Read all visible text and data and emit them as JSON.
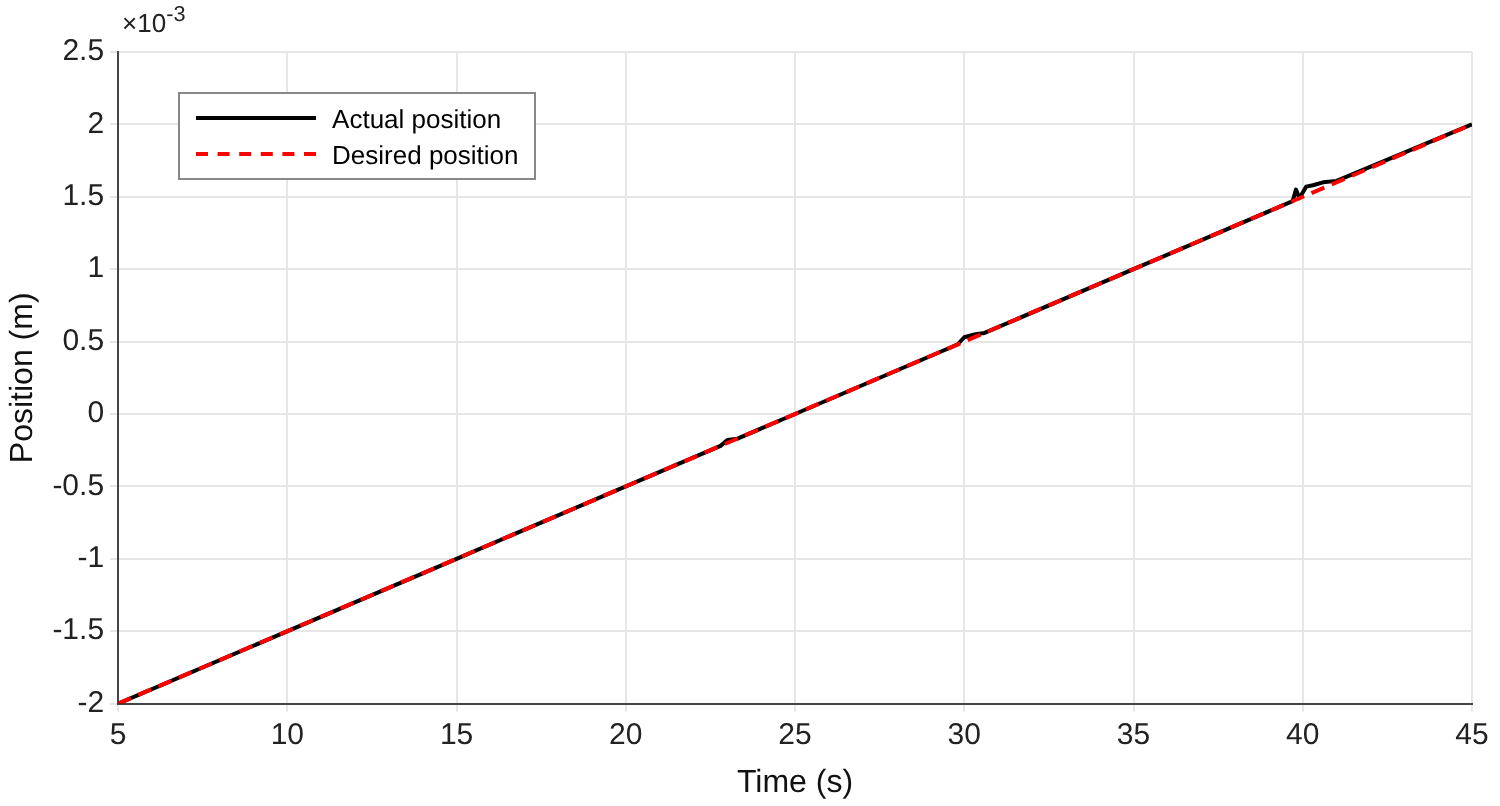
{
  "chart_data": {
    "type": "line",
    "xlabel": "Time (s)",
    "ylabel": "Position (m)",
    "annotations": [
      "×10$^{-3}$"
    ],
    "xlim": [
      5,
      45
    ],
    "xticks": [
      5,
      10,
      15,
      20,
      25,
      30,
      35,
      40,
      45
    ],
    "ylim": [
      -2,
      2.5
    ],
    "yticks": [
      -2,
      -1.5,
      -1,
      -0.5,
      0,
      0.5,
      1,
      1.5,
      2,
      2.5
    ],
    "grid": true,
    "legend": "top left",
    "marker": "none",
    "series": [
      {
        "name": "Actual position",
        "color": "#000000",
        "line_style": "solid",
        "x": [
          5,
          15,
          20,
          22.8,
          23,
          23.3,
          25,
          29.8,
          30,
          30.3,
          30.6,
          35,
          39.7,
          39.8,
          39.9,
          40,
          40.1,
          40.3,
          40.6,
          41,
          45
        ],
        "values": [
          -2,
          -1,
          -0.5,
          -0.22,
          -0.18,
          -0.17,
          0,
          0.48,
          0.53,
          0.55,
          0.56,
          1,
          1.47,
          1.55,
          1.49,
          1.53,
          1.57,
          1.58,
          1.6,
          1.61,
          2
        ]
      },
      {
        "name": "Desired position",
        "color": "#ff0000",
        "line_style": "dashed",
        "x": [
          5,
          45
        ],
        "values": [
          -2,
          2
        ]
      }
    ]
  }
}
